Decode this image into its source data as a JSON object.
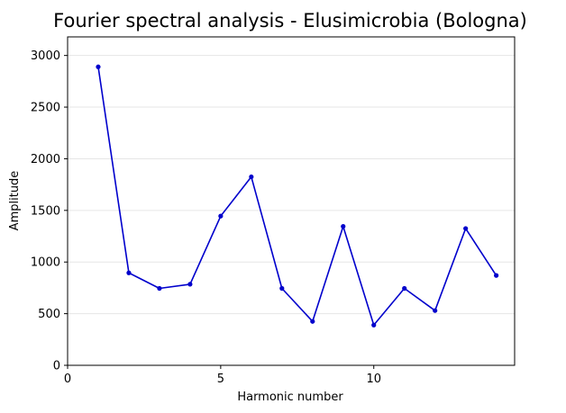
{
  "chart_data": {
    "type": "line",
    "title": "Fourier spectral analysis - Elusimicrobia (Bologna)",
    "xlabel": "Harmonic number",
    "ylabel": "Amplitude",
    "xlim": [
      0,
      14.6
    ],
    "ylim": [
      0,
      3180
    ],
    "xticks": [
      0,
      5,
      10
    ],
    "yticks": [
      0,
      500,
      1000,
      1500,
      2000,
      2500,
      3000
    ],
    "grid": "horizontal",
    "series": [
      {
        "color": "#0000cc",
        "x": [
          1,
          2,
          3,
          4,
          5,
          6,
          7,
          8,
          9,
          10,
          11,
          12,
          13,
          14
        ],
        "y": [
          2890,
          895,
          745,
          785,
          1445,
          1825,
          745,
          425,
          1345,
          390,
          745,
          530,
          1325,
          870
        ]
      }
    ]
  }
}
